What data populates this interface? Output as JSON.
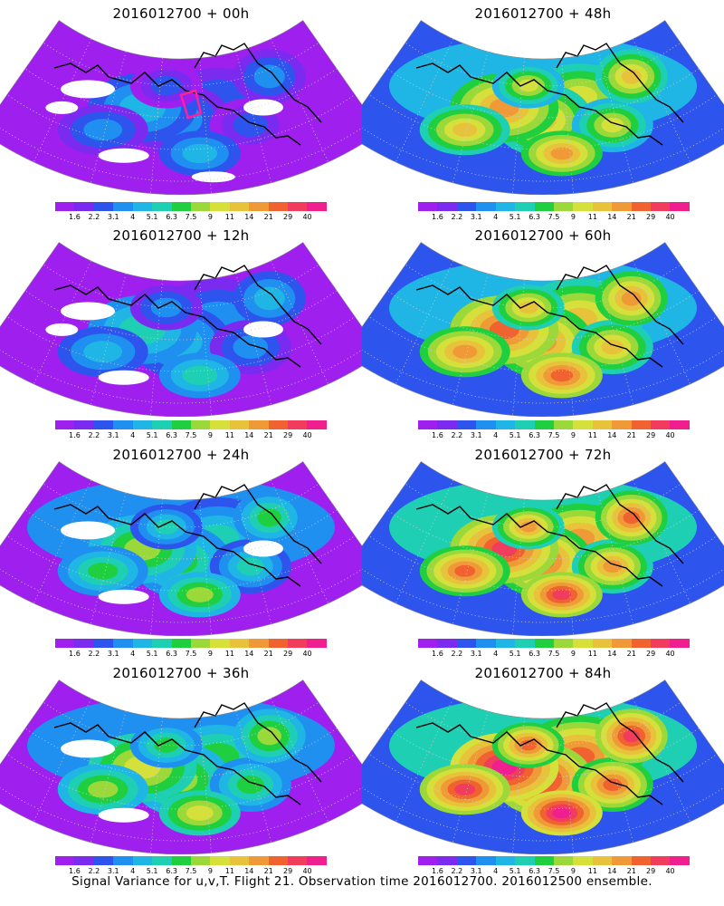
{
  "colorbar": {
    "labels": [
      "1.6",
      "2.2",
      "3.1",
      "4",
      "5.1",
      "6.3",
      "7.5",
      "9",
      "11",
      "14",
      "21",
      "29",
      "40"
    ],
    "colors": [
      "#9f1fef",
      "#7b2bef",
      "#2d55ee",
      "#1f8ff0",
      "#1fb6e6",
      "#1fcfb4",
      "#1fcf3f",
      "#9bd93a",
      "#d6e03a",
      "#e8c23a",
      "#ef9a36",
      "#f0622f",
      "#f03c5d",
      "#ef1f8f"
    ]
  },
  "panels": [
    {
      "title": "2016012700 + 00h",
      "level": 0
    },
    {
      "title": "2016012700 + 48h",
      "level": 4
    },
    {
      "title": "2016012700 + 12h",
      "level": 1
    },
    {
      "title": "2016012700 + 60h",
      "level": 5
    },
    {
      "title": "2016012700 + 24h",
      "level": 2
    },
    {
      "title": "2016012700 + 72h",
      "level": 6
    },
    {
      "title": "2016012700 + 36h",
      "level": 3
    },
    {
      "title": "2016012700 + 84h",
      "level": 7
    }
  ],
  "footer": "Signal Variance for u,v,T. Flight 21. Observation time 2016012700. 2016012500 ensemble."
}
